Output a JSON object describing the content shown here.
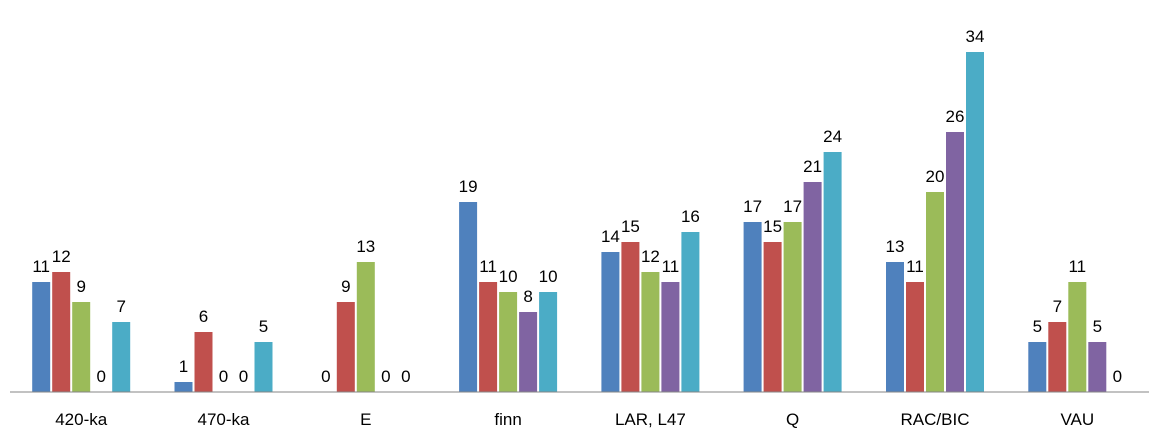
{
  "chart_data": {
    "type": "bar",
    "categories": [
      "420-ka",
      "470-ka",
      "E",
      "finn",
      "LAR, L47",
      "Q",
      "RAC/BIC",
      "VAU"
    ],
    "series": [
      {
        "values": [
          11,
          1,
          0,
          19,
          14,
          17,
          13,
          5
        ]
      },
      {
        "values": [
          12,
          6,
          9,
          11,
          15,
          15,
          11,
          7
        ]
      },
      {
        "values": [
          9,
          0,
          13,
          10,
          12,
          17,
          20,
          11
        ]
      },
      {
        "values": [
          0,
          0,
          0,
          8,
          11,
          21,
          26,
          5
        ]
      },
      {
        "values": [
          7,
          5,
          0,
          10,
          16,
          24,
          34,
          0
        ]
      }
    ],
    "colors": [
      "#4f81bd",
      "#c0504d",
      "#9bbb59",
      "#8064a2",
      "#4bacc6"
    ],
    "ylim": [
      0,
      34
    ],
    "grid": false,
    "legend": "none",
    "data_labels": true
  }
}
